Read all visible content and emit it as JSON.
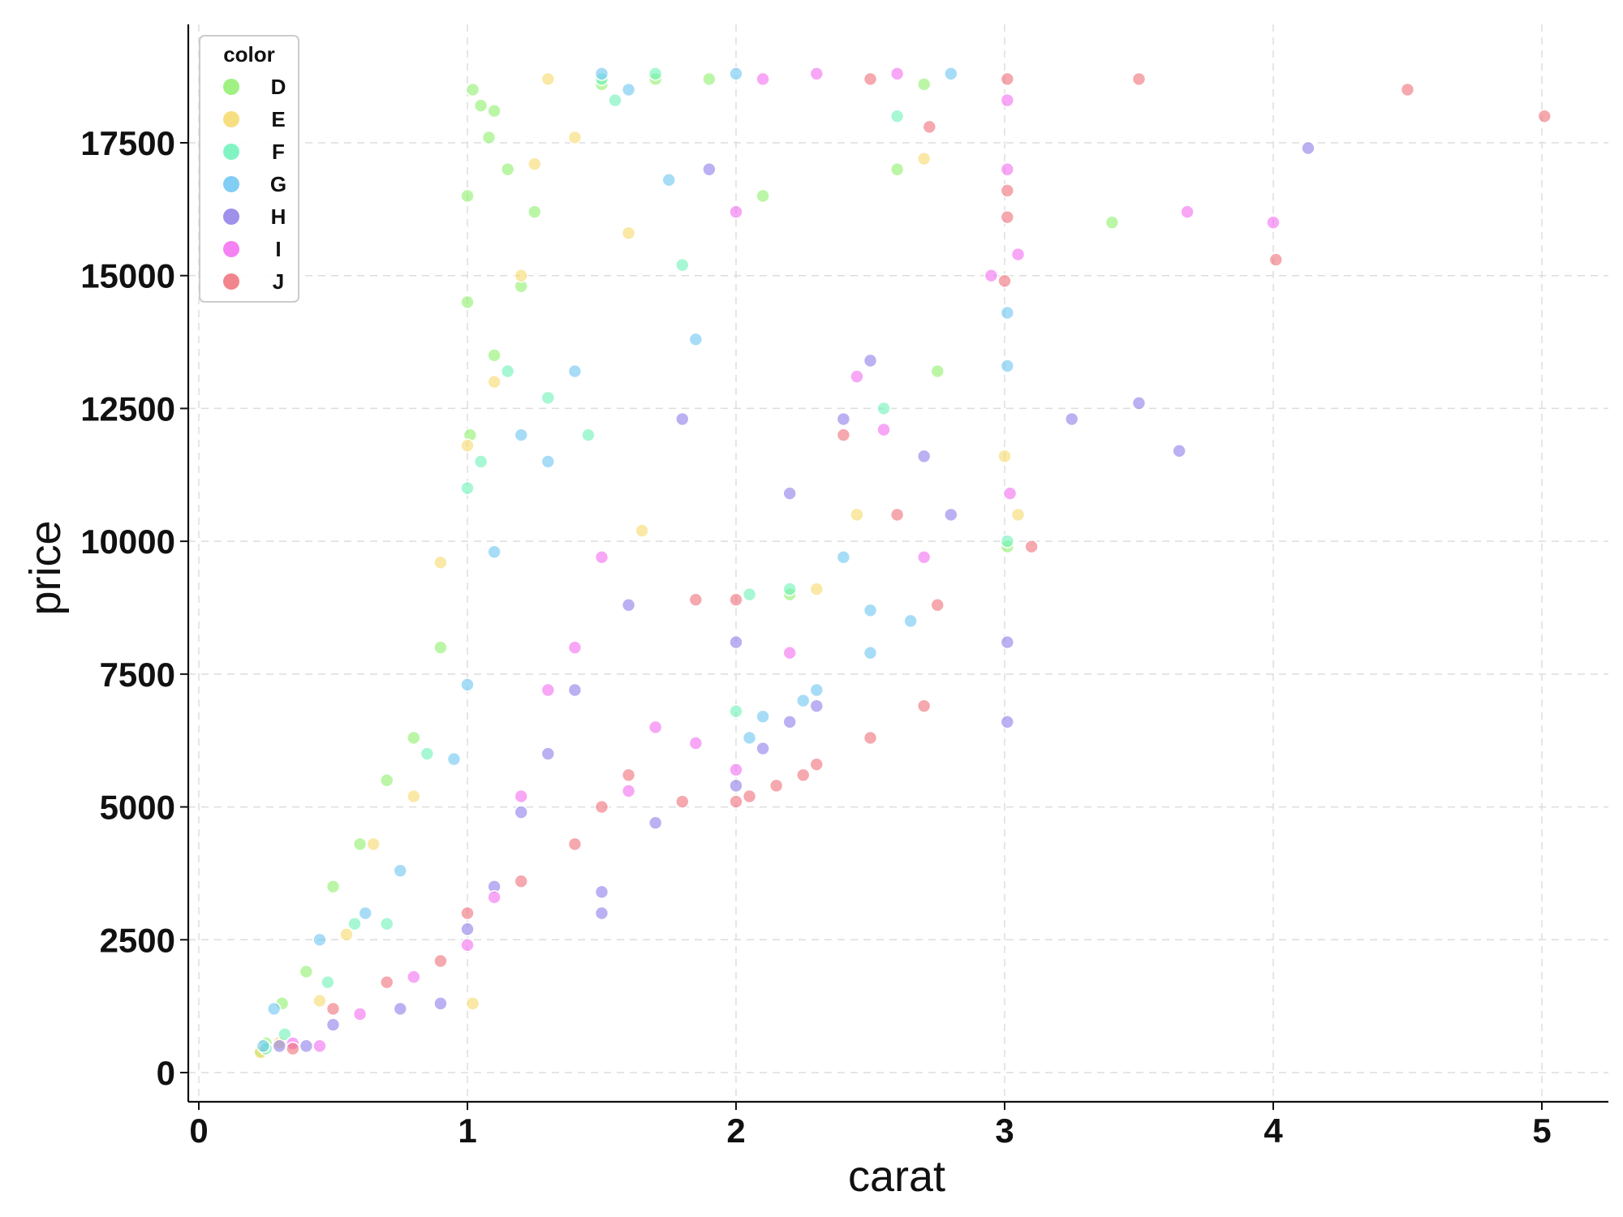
{
  "chart_data": {
    "type": "scatter",
    "title": "",
    "xlabel": "carat",
    "ylabel": "price",
    "xlim": [
      -0.04,
      5.25
    ],
    "ylim": [
      -600,
      19600
    ],
    "x_ticks": [
      0,
      1,
      2,
      3,
      4,
      5
    ],
    "y_ticks": [
      0,
      2500,
      5000,
      7500,
      10000,
      12500,
      15000,
      17500
    ],
    "grid": true,
    "legend": {
      "title": "color",
      "position": "top-left",
      "items": [
        "D",
        "E",
        "F",
        "G",
        "H",
        "I",
        "J"
      ]
    },
    "colors": {
      "D": "#8ef06c",
      "E": "#f6d86a",
      "F": "#6cf2b8",
      "G": "#6cc4f2",
      "H": "#8d7ce8",
      "I": "#f26cf0",
      "J": "#ee6e78"
    },
    "series": [
      {
        "name": "D",
        "points": [
          [
            0.23,
            400
          ],
          [
            0.25,
            550
          ],
          [
            0.31,
            1300
          ],
          [
            0.4,
            1900
          ],
          [
            0.5,
            3500
          ],
          [
            0.6,
            4300
          ],
          [
            0.7,
            5500
          ],
          [
            0.8,
            6300
          ],
          [
            0.9,
            8000
          ],
          [
            1.0,
            14500
          ],
          [
            1.0,
            16500
          ],
          [
            1.01,
            12000
          ],
          [
            1.02,
            18500
          ],
          [
            1.05,
            18200
          ],
          [
            1.08,
            17600
          ],
          [
            1.1,
            13500
          ],
          [
            1.1,
            18100
          ],
          [
            1.15,
            17000
          ],
          [
            1.2,
            14800
          ],
          [
            1.25,
            16200
          ],
          [
            1.5,
            18600
          ],
          [
            1.7,
            18700
          ],
          [
            1.9,
            18700
          ],
          [
            2.1,
            16500
          ],
          [
            2.6,
            17000
          ],
          [
            2.7,
            18600
          ],
          [
            2.75,
            13200
          ],
          [
            2.2,
            9000
          ],
          [
            3.01,
            9900
          ],
          [
            3.4,
            16000
          ]
        ]
      },
      {
        "name": "E",
        "points": [
          [
            0.23,
            380
          ],
          [
            0.3,
            560
          ],
          [
            0.45,
            1350
          ],
          [
            0.55,
            2600
          ],
          [
            0.65,
            4300
          ],
          [
            0.8,
            5200
          ],
          [
            0.9,
            9600
          ],
          [
            1.0,
            11800
          ],
          [
            1.02,
            1300
          ],
          [
            1.1,
            13000
          ],
          [
            1.2,
            15000
          ],
          [
            1.25,
            17100
          ],
          [
            1.3,
            18700
          ],
          [
            1.4,
            17600
          ],
          [
            1.6,
            15800
          ],
          [
            1.65,
            10200
          ],
          [
            2.3,
            9100
          ],
          [
            2.45,
            10500
          ],
          [
            2.7,
            17200
          ],
          [
            3.0,
            11600
          ],
          [
            3.05,
            10500
          ]
        ]
      },
      {
        "name": "F",
        "points": [
          [
            0.25,
            450
          ],
          [
            0.32,
            720
          ],
          [
            0.48,
            1700
          ],
          [
            0.58,
            2800
          ],
          [
            0.7,
            2800
          ],
          [
            0.85,
            6000
          ],
          [
            1.0,
            11000
          ],
          [
            1.05,
            11500
          ],
          [
            1.15,
            13200
          ],
          [
            1.3,
            12700
          ],
          [
            1.45,
            12000
          ],
          [
            1.5,
            18700
          ],
          [
            1.55,
            18300
          ],
          [
            1.7,
            18800
          ],
          [
            1.8,
            15200
          ],
          [
            2.0,
            6800
          ],
          [
            2.05,
            9000
          ],
          [
            2.2,
            9100
          ],
          [
            2.55,
            12500
          ],
          [
            2.6,
            18000
          ],
          [
            3.01,
            10000
          ]
        ]
      },
      {
        "name": "G",
        "points": [
          [
            0.24,
            500
          ],
          [
            0.28,
            1200
          ],
          [
            0.45,
            2500
          ],
          [
            0.62,
            3000
          ],
          [
            0.75,
            3800
          ],
          [
            0.95,
            5900
          ],
          [
            1.0,
            7300
          ],
          [
            1.1,
            9800
          ],
          [
            1.2,
            12000
          ],
          [
            1.3,
            11500
          ],
          [
            1.4,
            13200
          ],
          [
            1.5,
            18800
          ],
          [
            1.6,
            18500
          ],
          [
            1.75,
            16800
          ],
          [
            1.85,
            13800
          ],
          [
            2.0,
            18800
          ],
          [
            2.05,
            6300
          ],
          [
            2.1,
            6700
          ],
          [
            2.25,
            7000
          ],
          [
            2.3,
            7200
          ],
          [
            2.4,
            9700
          ],
          [
            2.5,
            8700
          ],
          [
            2.5,
            7900
          ],
          [
            2.65,
            8500
          ],
          [
            2.8,
            18800
          ],
          [
            3.01,
            14300
          ],
          [
            3.01,
            13300
          ]
        ]
      },
      {
        "name": "H",
        "points": [
          [
            0.3,
            500
          ],
          [
            0.4,
            500
          ],
          [
            0.5,
            900
          ],
          [
            0.75,
            1200
          ],
          [
            0.9,
            1300
          ],
          [
            1.0,
            2700
          ],
          [
            1.1,
            3500
          ],
          [
            1.2,
            4900
          ],
          [
            1.3,
            6000
          ],
          [
            1.4,
            7200
          ],
          [
            1.5,
            3000
          ],
          [
            1.5,
            3400
          ],
          [
            1.6,
            8800
          ],
          [
            1.7,
            4700
          ],
          [
            1.8,
            12300
          ],
          [
            1.9,
            17000
          ],
          [
            2.0,
            5400
          ],
          [
            2.0,
            8100
          ],
          [
            2.1,
            6100
          ],
          [
            2.2,
            6600
          ],
          [
            2.2,
            10900
          ],
          [
            2.3,
            6900
          ],
          [
            2.4,
            12300
          ],
          [
            2.5,
            13400
          ],
          [
            2.7,
            11600
          ],
          [
            2.8,
            10500
          ],
          [
            3.01,
            6600
          ],
          [
            3.01,
            8100
          ],
          [
            3.25,
            12300
          ],
          [
            3.5,
            12600
          ],
          [
            3.65,
            11700
          ],
          [
            4.13,
            17400
          ]
        ]
      },
      {
        "name": "I",
        "points": [
          [
            0.35,
            550
          ],
          [
            0.45,
            500
          ],
          [
            0.6,
            1100
          ],
          [
            0.8,
            1800
          ],
          [
            1.0,
            2400
          ],
          [
            1.1,
            3300
          ],
          [
            1.2,
            5200
          ],
          [
            1.3,
            7200
          ],
          [
            1.4,
            8000
          ],
          [
            1.5,
            9700
          ],
          [
            1.6,
            5300
          ],
          [
            1.7,
            6500
          ],
          [
            1.85,
            6200
          ],
          [
            2.0,
            5700
          ],
          [
            2.0,
            16200
          ],
          [
            2.1,
            18700
          ],
          [
            2.2,
            7900
          ],
          [
            2.3,
            18800
          ],
          [
            2.45,
            13100
          ],
          [
            2.55,
            12100
          ],
          [
            2.6,
            18800
          ],
          [
            2.7,
            9700
          ],
          [
            2.95,
            15000
          ],
          [
            3.01,
            17000
          ],
          [
            3.01,
            18300
          ],
          [
            3.02,
            10900
          ],
          [
            3.05,
            15400
          ],
          [
            3.68,
            16200
          ],
          [
            4.0,
            16000
          ]
        ]
      },
      {
        "name": "J",
        "points": [
          [
            0.35,
            450
          ],
          [
            0.5,
            1200
          ],
          [
            0.7,
            1700
          ],
          [
            0.9,
            2100
          ],
          [
            1.0,
            3000
          ],
          [
            1.2,
            3600
          ],
          [
            1.4,
            4300
          ],
          [
            1.5,
            5000
          ],
          [
            1.6,
            5600
          ],
          [
            1.8,
            5100
          ],
          [
            1.85,
            8900
          ],
          [
            2.0,
            5100
          ],
          [
            2.0,
            8900
          ],
          [
            2.05,
            5200
          ],
          [
            2.15,
            5400
          ],
          [
            2.25,
            5600
          ],
          [
            2.3,
            5800
          ],
          [
            2.4,
            12000
          ],
          [
            2.5,
            6300
          ],
          [
            2.5,
            18700
          ],
          [
            2.6,
            10500
          ],
          [
            2.7,
            6900
          ],
          [
            2.75,
            8800
          ],
          [
            2.72,
            17800
          ],
          [
            3.0,
            14900
          ],
          [
            3.01,
            18700
          ],
          [
            3.01,
            16600
          ],
          [
            3.01,
            16100
          ],
          [
            3.1,
            9900
          ],
          [
            3.5,
            18700
          ],
          [
            4.01,
            15300
          ],
          [
            4.5,
            18500
          ],
          [
            5.01,
            18000
          ]
        ]
      }
    ]
  }
}
